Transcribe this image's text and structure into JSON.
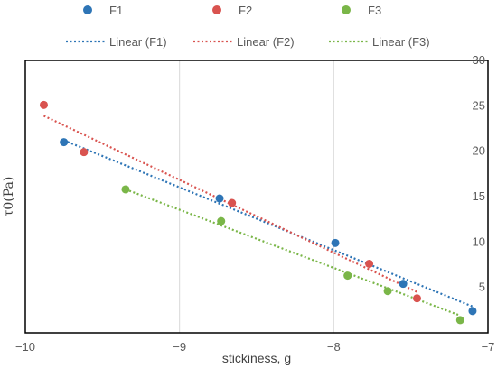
{
  "chart_data": {
    "type": "scatter",
    "xlabel": "stickiness, g",
    "ylabel": "τ0(Pa)",
    "xlim": [
      -10,
      -7
    ],
    "ylim": [
      0,
      30
    ],
    "x_ticks": [
      -10,
      -9,
      -8,
      -7
    ],
    "y_ticks": [
      5,
      10,
      15,
      20,
      25,
      30
    ],
    "x_tick_labels": [
      "−10",
      "−9",
      "−8",
      "−7"
    ],
    "y_tick_labels": [
      "5",
      "10",
      "15",
      "20",
      "25",
      "30"
    ],
    "grid": "vertical",
    "legend_position": "top",
    "series": [
      {
        "name": "F1",
        "trendline_name": "Linear (F1)",
        "color": "#2E75B6",
        "x": [
          -9.75,
          -8.74,
          -7.99,
          -7.55,
          -7.1
        ],
        "y": [
          21.0,
          14.8,
          9.9,
          5.4,
          2.4
        ],
        "trendline": {
          "x": [
            -9.75,
            -7.1
          ],
          "y": [
            21.2,
            2.9
          ]
        }
      },
      {
        "name": "F2",
        "trendline_name": "Linear (F2)",
        "color": "#D9534F",
        "x": [
          -9.88,
          -9.62,
          -8.66,
          -7.77,
          -7.46
        ],
        "y": [
          25.1,
          19.9,
          14.3,
          7.6,
          3.8
        ],
        "trendline": {
          "x": [
            -9.88,
            -7.46
          ],
          "y": [
            23.9,
            4.5
          ]
        }
      },
      {
        "name": "F3",
        "trendline_name": "Linear (F3)",
        "color": "#7AB648",
        "x": [
          -9.35,
          -8.73,
          -7.91,
          -7.65,
          -7.18
        ],
        "y": [
          15.8,
          12.3,
          6.3,
          4.6,
          1.4
        ],
        "trendline": {
          "x": [
            -9.35,
            -7.18
          ],
          "y": [
            15.8,
            1.9
          ]
        }
      }
    ]
  }
}
